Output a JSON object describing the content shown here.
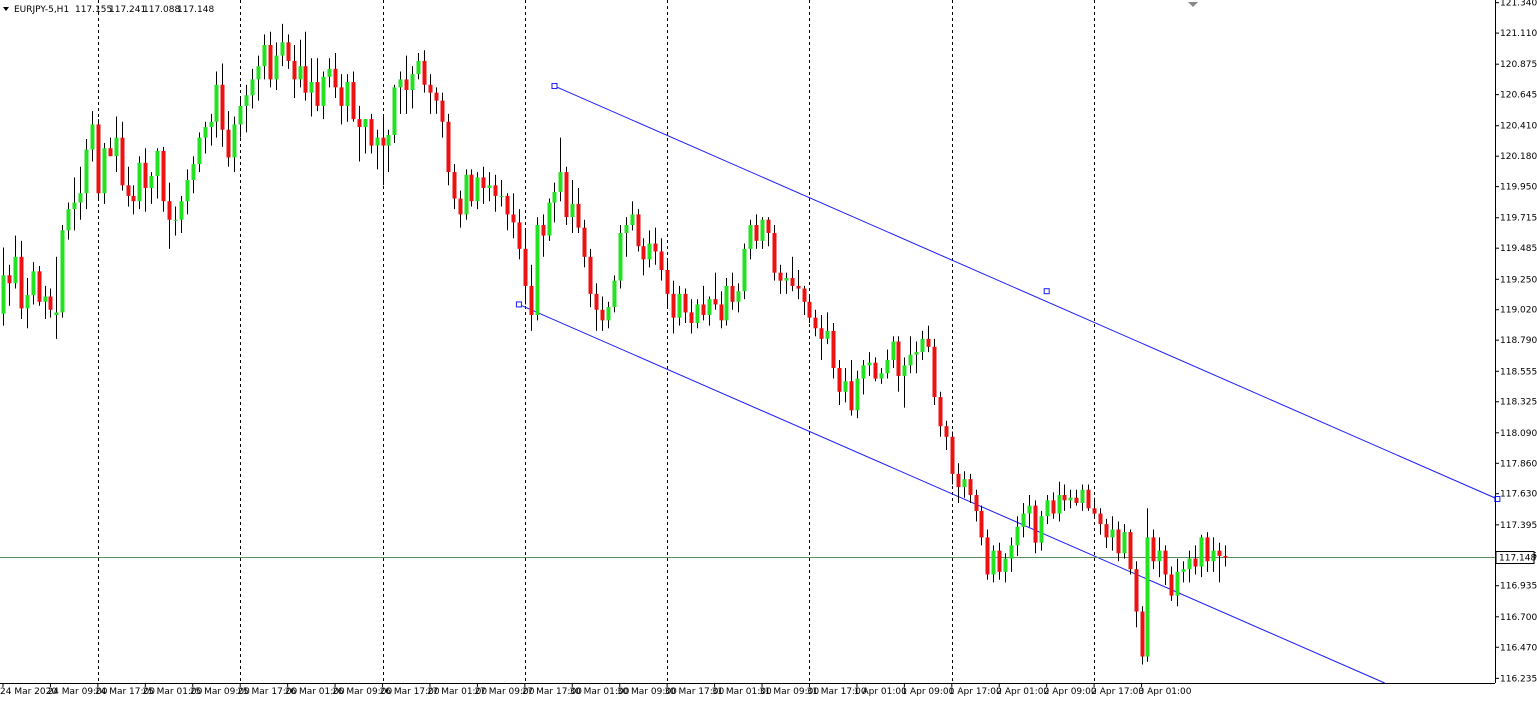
{
  "header": {
    "symbol": "EURJPY-5,H1",
    "open": "117.155",
    "high": "117.241",
    "low": "117.088",
    "close": "117.148",
    "menu_icon": "triangle-down-icon"
  },
  "colors": {
    "bull": "#22e222",
    "bear": "#ee1111",
    "wick": "#000000",
    "grid": "#000000",
    "channel": "#1a1aff",
    "price_line": "#5f8f5f",
    "background": "#ffffff"
  },
  "chart_data": {
    "type": "candlestick",
    "title": "",
    "ylim": [
      116.2,
      121.36
    ],
    "grid": "vertical dashed separators",
    "price_axis": [
      "121.340",
      "121.110",
      "120.875",
      "120.645",
      "120.410",
      "120.180",
      "119.950",
      "119.715",
      "119.485",
      "119.250",
      "119.020",
      "118.790",
      "118.555",
      "118.325",
      "118.090",
      "117.860",
      "117.630",
      "117.395",
      "117.165",
      "116.935",
      "116.700",
      "116.470",
      "116.235"
    ],
    "time_axis": [
      "24 Mar 2020",
      "24 Mar 09:00",
      "24 Mar 17:00",
      "25 Mar 01:00",
      "25 Mar 09:00",
      "25 Mar 17:00",
      "26 Mar 01:00",
      "26 Mar 09:00",
      "26 Mar 17:00",
      "27 Mar 01:00",
      "27 Mar 09:00",
      "27 Mar 17:00",
      "30 Mar 01:00",
      "30 Mar 09:00",
      "30 Mar 17:00",
      "31 Mar 01:00",
      "31 Mar 09:00",
      "31 Mar 17:00",
      "1 Apr 01:00",
      "1 Apr 09:00",
      "1 Apr 17:00",
      "2 Apr 01:00",
      "2 Apr 09:00",
      "2 Apr 17:00",
      "3 Apr 01:00"
    ],
    "separators": [
      "24 Mar 17:00",
      "25 Mar 17:00",
      "26 Mar 17:00",
      "27 Mar 17:00",
      "30 Mar 17:00",
      "31 Mar 17:00",
      "1 Apr 17:00",
      "2 Apr 17:00"
    ],
    "current_price": 117.148,
    "current_price_label": "117.148",
    "channel": {
      "upper": {
        "from": {
          "bar": 93,
          "price": 120.71
        },
        "to": {
          "bar": 252,
          "price": 117.59
        },
        "anchor": {
          "bar": 176,
          "price": 119.16
        }
      },
      "lower": {
        "from": {
          "bar": 87,
          "price": 119.06
        },
        "to": {
          "bar": 233,
          "price": 116.2
        }
      }
    },
    "candles": [
      [
        118.99,
        119.49,
        118.9,
        119.28
      ],
      [
        119.28,
        119.36,
        119.05,
        119.22
      ],
      [
        119.22,
        119.58,
        119.18,
        119.42
      ],
      [
        119.42,
        119.54,
        118.95,
        119.03
      ],
      [
        119.03,
        119.26,
        118.88,
        119.13
      ],
      [
        119.13,
        119.38,
        119.06,
        119.31
      ],
      [
        119.31,
        119.35,
        119.05,
        119.08
      ],
      [
        119.08,
        119.2,
        118.95,
        119.12
      ],
      [
        119.12,
        119.18,
        118.96,
        119.02
      ],
      [
        118.98,
        119.42,
        118.8,
        119.0
      ],
      [
        119.0,
        119.66,
        118.96,
        119.62
      ],
      [
        119.62,
        119.83,
        119.55,
        119.78
      ],
      [
        119.78,
        120.02,
        119.62,
        119.83
      ],
      [
        119.83,
        120.1,
        119.7,
        119.9
      ],
      [
        119.9,
        120.31,
        119.78,
        120.23
      ],
      [
        120.23,
        120.52,
        120.14,
        120.42
      ],
      [
        120.42,
        120.46,
        119.86,
        119.9
      ],
      [
        119.9,
        120.28,
        119.82,
        120.24
      ],
      [
        120.24,
        120.32,
        120.18,
        120.18
      ],
      [
        120.18,
        120.48,
        120.06,
        120.32
      ],
      [
        120.32,
        120.44,
        119.92,
        119.96
      ],
      [
        119.96,
        120.1,
        119.8,
        119.88
      ],
      [
        119.88,
        119.96,
        119.74,
        119.84
      ],
      [
        119.84,
        120.18,
        119.78,
        120.13
      ],
      [
        120.13,
        120.24,
        119.76,
        119.94
      ],
      [
        119.94,
        120.06,
        119.82,
        120.03
      ],
      [
        120.03,
        120.24,
        119.86,
        120.22
      ],
      [
        120.22,
        120.25,
        119.76,
        119.84
      ],
      [
        119.84,
        119.98,
        119.48,
        119.7
      ],
      [
        119.7,
        119.8,
        119.58,
        119.7
      ],
      [
        119.7,
        119.88,
        119.6,
        119.84
      ],
      [
        119.84,
        120.08,
        119.74,
        120.0
      ],
      [
        120.0,
        120.18,
        119.9,
        120.12
      ],
      [
        120.12,
        120.36,
        120.06,
        120.32
      ],
      [
        120.32,
        120.44,
        120.2,
        120.4
      ],
      [
        120.4,
        120.5,
        120.26,
        120.44
      ],
      [
        120.44,
        120.82,
        120.32,
        120.72
      ],
      [
        120.72,
        120.88,
        120.25,
        120.38
      ],
      [
        120.38,
        120.52,
        120.1,
        120.17
      ],
      [
        120.17,
        120.48,
        120.06,
        120.42
      ],
      [
        120.42,
        120.62,
        120.32,
        120.56
      ],
      [
        120.56,
        120.72,
        120.36,
        120.64
      ],
      [
        120.64,
        120.84,
        120.54,
        120.76
      ],
      [
        120.76,
        120.94,
        120.6,
        120.86
      ],
      [
        120.86,
        121.1,
        120.76,
        121.02
      ],
      [
        121.02,
        121.12,
        120.7,
        120.76
      ],
      [
        120.76,
        121.04,
        120.68,
        120.94
      ],
      [
        120.94,
        121.18,
        120.86,
        121.04
      ],
      [
        121.04,
        121.1,
        120.84,
        120.9
      ],
      [
        120.9,
        121.02,
        120.62,
        120.76
      ],
      [
        120.76,
        121.06,
        120.7,
        120.86
      ],
      [
        120.86,
        121.12,
        120.6,
        120.66
      ],
      [
        120.66,
        120.92,
        120.48,
        120.74
      ],
      [
        120.74,
        120.92,
        120.52,
        120.56
      ],
      [
        120.56,
        120.82,
        120.46,
        120.78
      ],
      [
        120.78,
        120.92,
        120.7,
        120.84
      ],
      [
        120.84,
        120.96,
        120.62,
        120.7
      ],
      [
        120.7,
        120.8,
        120.42,
        120.56
      ],
      [
        120.56,
        120.8,
        120.44,
        120.74
      ],
      [
        120.74,
        120.82,
        120.44,
        120.46
      ],
      [
        120.46,
        120.56,
        120.14,
        120.4
      ],
      [
        120.4,
        120.46,
        120.2,
        120.46
      ],
      [
        120.46,
        120.5,
        120.2,
        120.26
      ],
      [
        120.26,
        120.38,
        120.08,
        120.32
      ],
      [
        120.32,
        120.48,
        119.96,
        120.26
      ],
      [
        120.26,
        120.38,
        120.06,
        120.34
      ],
      [
        120.34,
        120.72,
        120.28,
        120.7
      ],
      [
        120.7,
        120.82,
        120.5,
        120.76
      ],
      [
        120.76,
        120.94,
        120.5,
        120.68
      ],
      [
        120.68,
        120.86,
        120.54,
        120.8
      ],
      [
        120.8,
        120.96,
        120.76,
        120.9
      ],
      [
        120.9,
        120.98,
        120.66,
        120.72
      ],
      [
        120.72,
        120.8,
        120.5,
        120.66
      ],
      [
        120.66,
        120.7,
        120.5,
        120.6
      ],
      [
        120.6,
        120.66,
        120.32,
        120.44
      ],
      [
        120.44,
        120.5,
        119.96,
        120.06
      ],
      [
        120.06,
        120.12,
        119.78,
        119.86
      ],
      [
        119.86,
        119.92,
        119.64,
        119.74
      ],
      [
        119.74,
        120.08,
        119.7,
        120.04
      ],
      [
        120.04,
        120.08,
        119.8,
        119.84
      ],
      [
        119.84,
        120.06,
        119.78,
        120.02
      ],
      [
        120.02,
        120.1,
        119.82,
        119.94
      ],
      [
        119.94,
        120.06,
        119.84,
        119.96
      ],
      [
        119.96,
        120.04,
        119.76,
        119.88
      ],
      [
        119.88,
        120.0,
        119.8,
        119.88
      ],
      [
        119.88,
        119.9,
        119.62,
        119.74
      ],
      [
        119.74,
        119.9,
        119.56,
        119.68
      ],
      [
        119.68,
        119.78,
        119.4,
        119.48
      ],
      [
        119.48,
        119.62,
        119.06,
        119.2
      ],
      [
        119.2,
        119.36,
        118.86,
        118.98
      ],
      [
        118.98,
        119.72,
        118.94,
        119.66
      ],
      [
        119.66,
        119.74,
        119.42,
        119.58
      ],
      [
        119.58,
        119.86,
        119.54,
        119.83
      ],
      [
        119.83,
        119.98,
        119.68,
        119.91
      ],
      [
        119.91,
        120.32,
        119.84,
        120.06
      ],
      [
        120.06,
        120.1,
        119.66,
        119.72
      ],
      [
        119.72,
        120.0,
        119.6,
        119.82
      ],
      [
        119.82,
        119.94,
        119.6,
        119.64
      ],
      [
        119.64,
        119.7,
        119.34,
        119.42
      ],
      [
        119.42,
        119.48,
        119.04,
        119.14
      ],
      [
        119.14,
        119.22,
        118.86,
        119.02
      ],
      [
        119.02,
        119.12,
        118.86,
        118.94
      ],
      [
        118.94,
        119.08,
        118.88,
        119.04
      ],
      [
        119.04,
        119.28,
        119.0,
        119.24
      ],
      [
        119.24,
        119.66,
        119.18,
        119.6
      ],
      [
        119.6,
        119.72,
        119.42,
        119.66
      ],
      [
        119.66,
        119.84,
        119.62,
        119.74
      ],
      [
        119.74,
        119.78,
        119.46,
        119.5
      ],
      [
        119.5,
        119.56,
        119.28,
        119.4
      ],
      [
        119.4,
        119.62,
        119.34,
        119.52
      ],
      [
        119.52,
        119.64,
        119.36,
        119.46
      ],
      [
        119.46,
        119.56,
        119.24,
        119.32
      ],
      [
        119.32,
        119.4,
        119.04,
        119.14
      ],
      [
        119.14,
        119.24,
        118.84,
        118.96
      ],
      [
        118.96,
        119.2,
        118.9,
        119.14
      ],
      [
        119.14,
        119.18,
        118.92,
        119.0
      ],
      [
        119.0,
        119.1,
        118.84,
        118.92
      ],
      [
        118.92,
        119.1,
        118.88,
        119.06
      ],
      [
        119.06,
        119.2,
        118.94,
        118.98
      ],
      [
        118.98,
        119.12,
        118.9,
        119.1
      ],
      [
        119.1,
        119.3,
        119.02,
        119.06
      ],
      [
        119.06,
        119.16,
        118.88,
        118.94
      ],
      [
        118.94,
        119.26,
        118.9,
        119.2
      ],
      [
        119.2,
        119.3,
        119.02,
        119.08
      ],
      [
        119.08,
        119.22,
        119.0,
        119.16
      ],
      [
        119.16,
        119.52,
        119.1,
        119.48
      ],
      [
        119.48,
        119.7,
        119.4,
        119.66
      ],
      [
        119.66,
        119.74,
        119.48,
        119.54
      ],
      [
        119.54,
        119.72,
        119.48,
        119.7
      ],
      [
        119.7,
        119.72,
        119.5,
        119.6
      ],
      [
        119.6,
        119.66,
        119.24,
        119.3
      ],
      [
        119.3,
        119.36,
        119.14,
        119.24
      ],
      [
        119.24,
        119.3,
        119.14,
        119.26
      ],
      [
        119.26,
        119.42,
        119.16,
        119.2
      ],
      [
        119.2,
        119.32,
        119.1,
        119.18
      ],
      [
        119.18,
        119.2,
        118.98,
        119.08
      ],
      [
        119.08,
        119.12,
        118.92,
        118.96
      ],
      [
        118.96,
        119.02,
        118.82,
        118.88
      ],
      [
        118.88,
        118.98,
        118.64,
        118.8
      ],
      [
        118.8,
        119.0,
        118.76,
        118.86
      ],
      [
        118.86,
        118.92,
        118.5,
        118.58
      ],
      [
        118.58,
        118.64,
        118.3,
        118.4
      ],
      [
        118.4,
        118.58,
        118.32,
        118.48
      ],
      [
        118.48,
        118.64,
        118.22,
        118.26
      ],
      [
        118.26,
        118.56,
        118.2,
        118.5
      ],
      [
        118.5,
        118.64,
        118.38,
        118.6
      ],
      [
        118.6,
        118.7,
        118.52,
        118.62
      ],
      [
        118.62,
        118.66,
        118.48,
        118.5
      ],
      [
        118.5,
        118.58,
        118.46,
        118.54
      ],
      [
        118.54,
        118.72,
        118.5,
        118.64
      ],
      [
        118.64,
        118.82,
        118.58,
        118.78
      ],
      [
        118.78,
        118.82,
        118.4,
        118.52
      ],
      [
        118.52,
        118.66,
        118.28,
        118.6
      ],
      [
        118.6,
        118.82,
        118.54,
        118.68
      ],
      [
        118.68,
        118.78,
        118.54,
        118.7
      ],
      [
        118.7,
        118.86,
        118.64,
        118.8
      ],
      [
        118.8,
        118.9,
        118.7,
        118.74
      ],
      [
        118.74,
        118.8,
        118.3,
        118.36
      ],
      [
        118.36,
        118.4,
        118.06,
        118.14
      ],
      [
        118.14,
        118.18,
        117.96,
        118.06
      ],
      [
        118.06,
        118.1,
        117.7,
        117.78
      ],
      [
        117.78,
        117.86,
        117.56,
        117.68
      ],
      [
        117.68,
        117.8,
        117.6,
        117.74
      ],
      [
        117.74,
        117.78,
        117.56,
        117.62
      ],
      [
        117.62,
        117.66,
        117.42,
        117.5
      ],
      [
        117.5,
        117.54,
        117.24,
        117.3
      ],
      [
        117.3,
        117.36,
        116.98,
        117.02
      ],
      [
        117.02,
        117.24,
        116.96,
        117.2
      ],
      [
        117.2,
        117.26,
        116.98,
        117.04
      ],
      [
        117.04,
        117.18,
        116.96,
        117.14
      ],
      [
        117.14,
        117.3,
        117.04,
        117.24
      ],
      [
        117.24,
        117.46,
        117.16,
        117.38
      ],
      [
        117.38,
        117.56,
        117.3,
        117.48
      ],
      [
        117.48,
        117.62,
        117.38,
        117.54
      ],
      [
        117.54,
        117.58,
        117.18,
        117.26
      ],
      [
        117.26,
        117.5,
        117.2,
        117.46
      ],
      [
        117.46,
        117.62,
        117.4,
        117.58
      ],
      [
        117.58,
        117.64,
        117.44,
        117.48
      ],
      [
        117.48,
        117.72,
        117.42,
        117.62
      ],
      [
        117.62,
        117.7,
        117.5,
        117.58
      ],
      [
        117.58,
        117.66,
        117.52,
        117.6
      ],
      [
        117.6,
        117.66,
        117.54,
        117.56
      ],
      [
        117.56,
        117.7,
        117.5,
        117.66
      ],
      [
        117.66,
        117.7,
        117.5,
        117.52
      ],
      [
        117.52,
        117.6,
        117.44,
        117.48
      ],
      [
        117.48,
        117.52,
        117.32,
        117.4
      ],
      [
        117.4,
        117.44,
        117.22,
        117.3
      ],
      [
        117.3,
        117.46,
        117.2,
        117.36
      ],
      [
        117.36,
        117.42,
        117.12,
        117.18
      ],
      [
        117.18,
        117.4,
        117.14,
        117.34
      ],
      [
        117.34,
        117.36,
        117.02,
        117.06
      ],
      [
        117.06,
        117.12,
        116.62,
        116.74
      ],
      [
        116.74,
        116.78,
        116.34,
        116.4
      ],
      [
        116.4,
        117.52,
        116.36,
        117.3
      ],
      [
        117.3,
        117.36,
        117.06,
        117.12
      ],
      [
        117.12,
        117.3,
        117.0,
        117.2
      ],
      [
        117.2,
        117.24,
        116.94,
        117.02
      ],
      [
        117.02,
        117.08,
        116.82,
        116.86
      ],
      [
        116.86,
        117.14,
        116.78,
        117.04
      ],
      [
        117.04,
        117.12,
        116.96,
        117.06
      ],
      [
        117.06,
        117.2,
        116.96,
        117.14
      ],
      [
        117.14,
        117.24,
        117.02,
        117.08
      ],
      [
        117.08,
        117.32,
        117.0,
        117.3
      ],
      [
        117.3,
        117.34,
        117.04,
        117.12
      ],
      [
        117.12,
        117.3,
        117.04,
        117.2
      ],
      [
        117.2,
        117.26,
        116.96,
        117.16
      ],
      [
        117.16,
        117.24,
        117.08,
        117.148
      ]
    ]
  }
}
